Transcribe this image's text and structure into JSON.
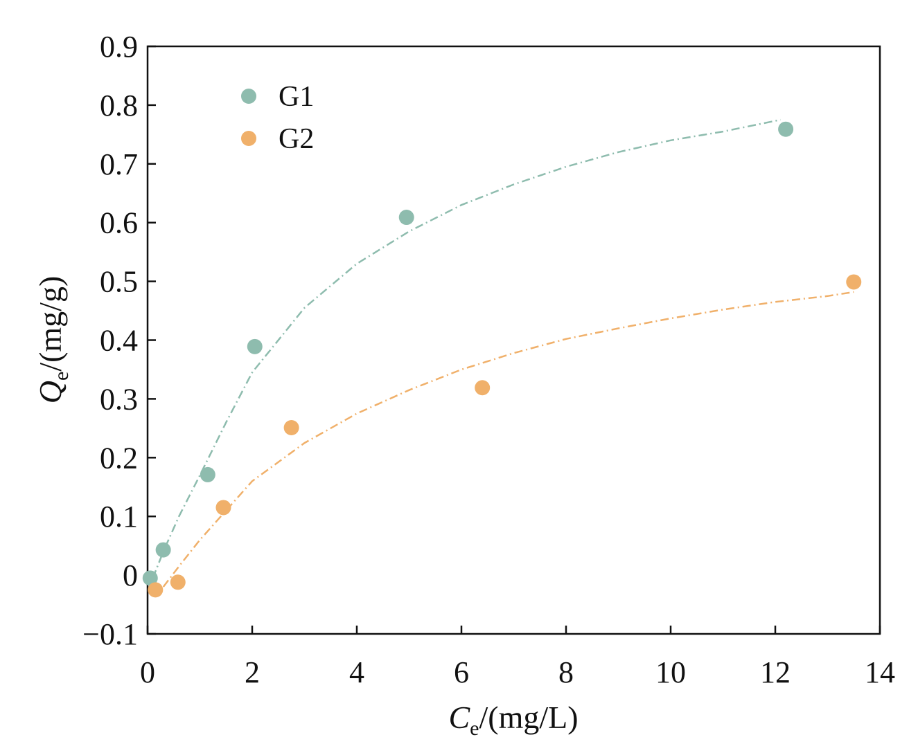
{
  "chart_data": {
    "type": "scatter",
    "title": "",
    "xlabel": {
      "main": "C",
      "sub": "e",
      "rest": "/(mg/L)"
    },
    "ylabel": {
      "main": "Q",
      "sub": "e",
      "rest": "/(mg/g)"
    },
    "xlim": [
      0,
      14
    ],
    "ylim": [
      -0.1,
      0.9
    ],
    "xticks": [
      0,
      2,
      4,
      6,
      8,
      10,
      12,
      14
    ],
    "xtick_labels": [
      "0",
      "2",
      "4",
      "6",
      "8",
      "10",
      "12",
      "14"
    ],
    "yticks": [
      -0.1,
      0,
      0.1,
      0.2,
      0.3,
      0.4,
      0.5,
      0.6,
      0.7,
      0.8,
      0.9
    ],
    "ytick_labels": [
      "−0.1",
      "0",
      "0.1",
      "0.2",
      "0.3",
      "0.4",
      "0.5",
      "0.6",
      "0.7",
      "0.8",
      "0.9"
    ],
    "grid": false,
    "legend_position": "top-left",
    "series": [
      {
        "name": "G1",
        "color": "#8ebcae",
        "points": [
          [
            0.05,
            -0.005
          ],
          [
            0.3,
            0.043
          ],
          [
            1.15,
            0.171
          ],
          [
            2.05,
            0.389
          ],
          [
            4.95,
            0.609
          ],
          [
            12.2,
            0.759
          ]
        ],
        "fit": [
          [
            0.1,
            -0.005
          ],
          [
            0.3,
            0.04
          ],
          [
            0.6,
            0.1
          ],
          [
            1.0,
            0.17
          ],
          [
            1.5,
            0.26
          ],
          [
            2.0,
            0.345
          ],
          [
            3.0,
            0.455
          ],
          [
            4.0,
            0.53
          ],
          [
            5.0,
            0.585
          ],
          [
            6.0,
            0.63
          ],
          [
            7.0,
            0.665
          ],
          [
            8.0,
            0.695
          ],
          [
            9.0,
            0.72
          ],
          [
            10.0,
            0.74
          ],
          [
            11.0,
            0.755
          ],
          [
            12.1,
            0.775
          ]
        ]
      },
      {
        "name": "G2",
        "color": "#f0b06a",
        "points": [
          [
            0.15,
            -0.025
          ],
          [
            0.58,
            -0.012
          ],
          [
            1.45,
            0.115
          ],
          [
            2.75,
            0.251
          ],
          [
            6.4,
            0.319
          ],
          [
            13.5,
            0.499
          ]
        ],
        "fit": [
          [
            0.3,
            -0.02
          ],
          [
            0.6,
            0.015
          ],
          [
            1.0,
            0.06
          ],
          [
            1.5,
            0.11
          ],
          [
            2.0,
            0.16
          ],
          [
            3.0,
            0.225
          ],
          [
            4.0,
            0.275
          ],
          [
            5.0,
            0.315
          ],
          [
            6.0,
            0.35
          ],
          [
            7.0,
            0.378
          ],
          [
            8.0,
            0.402
          ],
          [
            9.0,
            0.42
          ],
          [
            10.0,
            0.437
          ],
          [
            11.0,
            0.452
          ],
          [
            12.0,
            0.465
          ],
          [
            13.0,
            0.475
          ],
          [
            13.5,
            0.482
          ]
        ]
      }
    ]
  }
}
